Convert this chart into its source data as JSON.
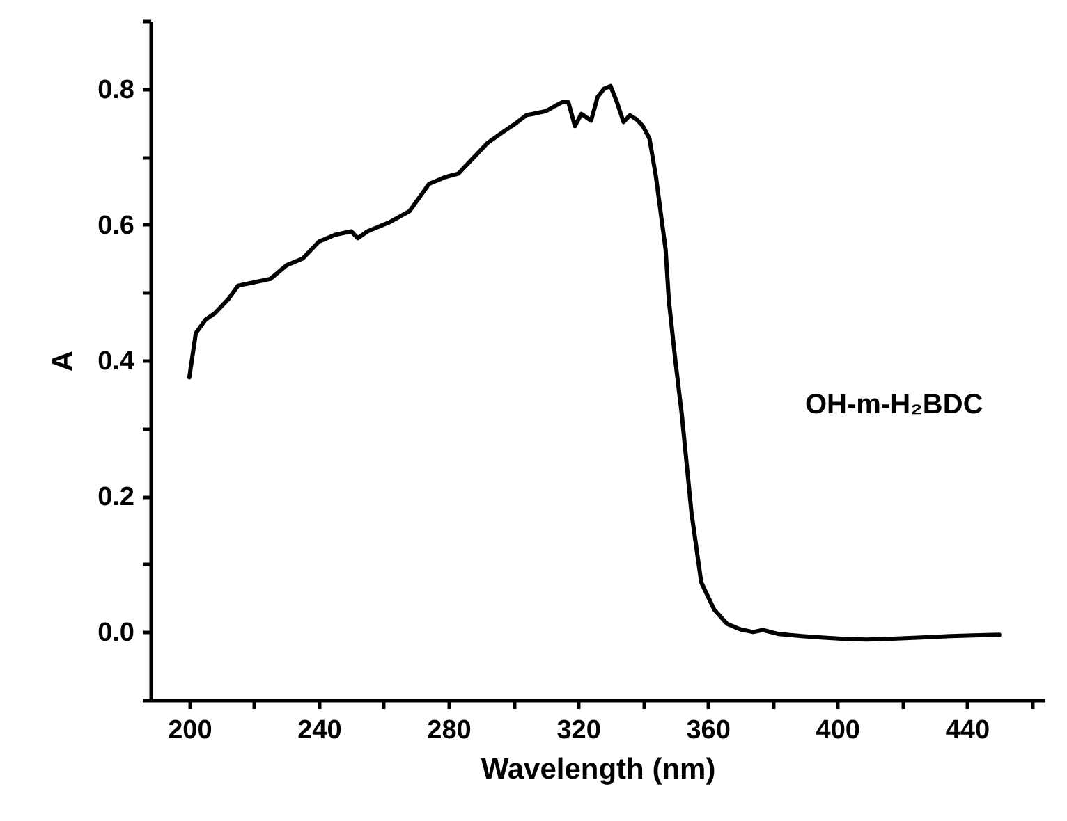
{
  "chart_data": {
    "type": "line",
    "xlabel": "Wavelength (nm)",
    "ylabel": "A",
    "x": [
      200,
      202,
      205,
      208,
      212,
      215,
      220,
      225,
      230,
      235,
      240,
      245,
      250,
      252,
      255,
      262,
      268,
      274,
      279,
      283,
      287,
      292,
      297,
      301,
      304,
      307,
      310,
      313,
      315,
      317,
      319,
      321,
      324,
      326,
      328,
      330,
      332,
      334,
      336,
      338,
      340,
      342,
      344,
      347,
      348,
      350,
      352,
      355,
      358,
      362,
      366,
      370,
      374,
      377,
      382,
      389,
      395,
      402,
      409,
      416,
      426,
      435,
      442,
      450
    ],
    "series": [
      {
        "name": "OH-m-H₂BDC",
        "color": "#000000",
        "values": [
          0.375,
          0.44,
          0.46,
          0.47,
          0.49,
          0.51,
          0.515,
          0.52,
          0.54,
          0.55,
          0.575,
          0.585,
          0.59,
          0.58,
          0.59,
          0.604,
          0.62,
          0.66,
          0.67,
          0.675,
          0.695,
          0.72,
          0.737,
          0.75,
          0.761,
          0.764,
          0.767,
          0.775,
          0.78,
          0.78,
          0.745,
          0.763,
          0.753,
          0.788,
          0.8,
          0.804,
          0.78,
          0.751,
          0.761,
          0.755,
          0.745,
          0.727,
          0.671,
          0.563,
          0.488,
          0.4,
          0.32,
          0.175,
          0.073,
          0.033,
          0.012,
          0.004,
          0.0,
          0.003,
          -0.003,
          -0.006,
          -0.008,
          -0.01,
          -0.011,
          -0.01,
          -0.008,
          -0.006,
          -0.005,
          -0.004
        ]
      }
    ],
    "xlim": [
      188,
      464
    ],
    "xticks": [
      200,
      {
        "value": 220,
        "label": null
      },
      240,
      {
        "value": 260,
        "label": null
      },
      280,
      {
        "value": 300,
        "label": null
      },
      320,
      {
        "value": 340,
        "label": null
      },
      360,
      {
        "value": 380,
        "label": null
      },
      400,
      {
        "value": 420,
        "label": null
      },
      440,
      {
        "value": 460,
        "label": null
      }
    ],
    "ylim": [
      -0.1,
      0.9
    ],
    "yticks": [
      {
        "value": -0.1,
        "label": null
      },
      {
        "value": 0,
        "label": "0.0"
      },
      {
        "value": 0.1,
        "label": null
      },
      {
        "value": 0.2,
        "label": "0.2"
      },
      {
        "value": 0.3,
        "label": null
      },
      {
        "value": 0.4,
        "label": "0.4"
      },
      {
        "value": 0.5,
        "label": null
      },
      {
        "value": 0.6,
        "label": "0.6"
      },
      {
        "value": 0.7,
        "label": null
      },
      {
        "value": 0.8,
        "label": "0.8"
      },
      {
        "value": 0.9,
        "label": null
      }
    ],
    "grid": false,
    "legend": false,
    "line_style": "solid",
    "marker": "none"
  }
}
